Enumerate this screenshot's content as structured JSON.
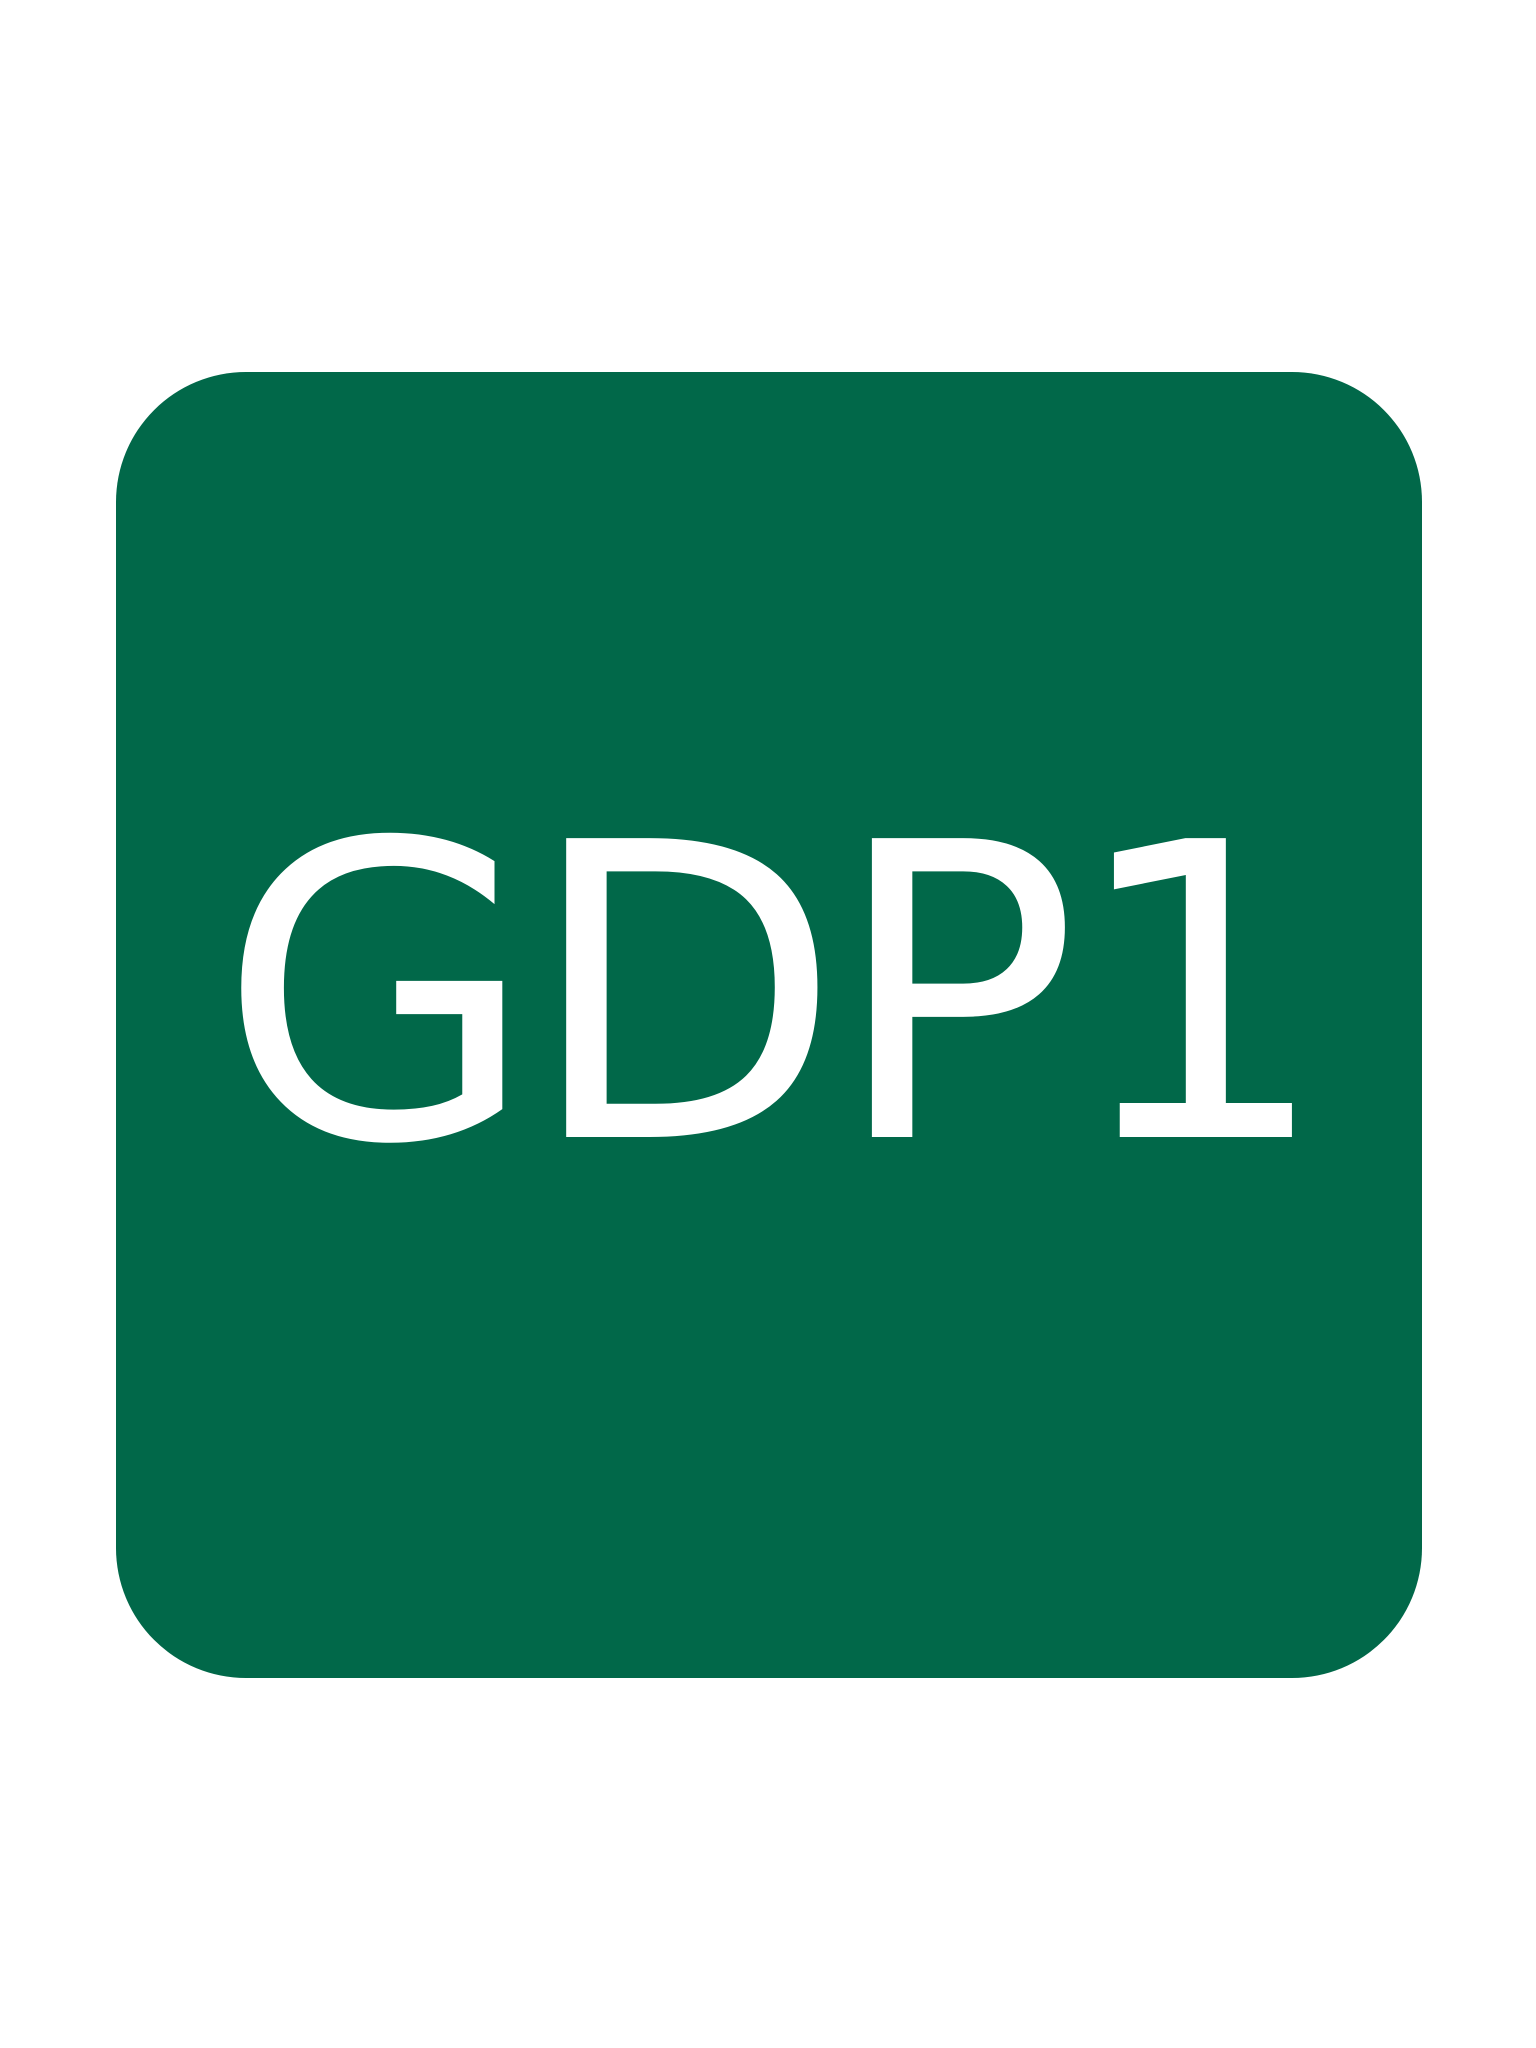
{
  "badge": {
    "label": "GDP1",
    "background_color": "#016849",
    "text_color": "#ffffff"
  }
}
